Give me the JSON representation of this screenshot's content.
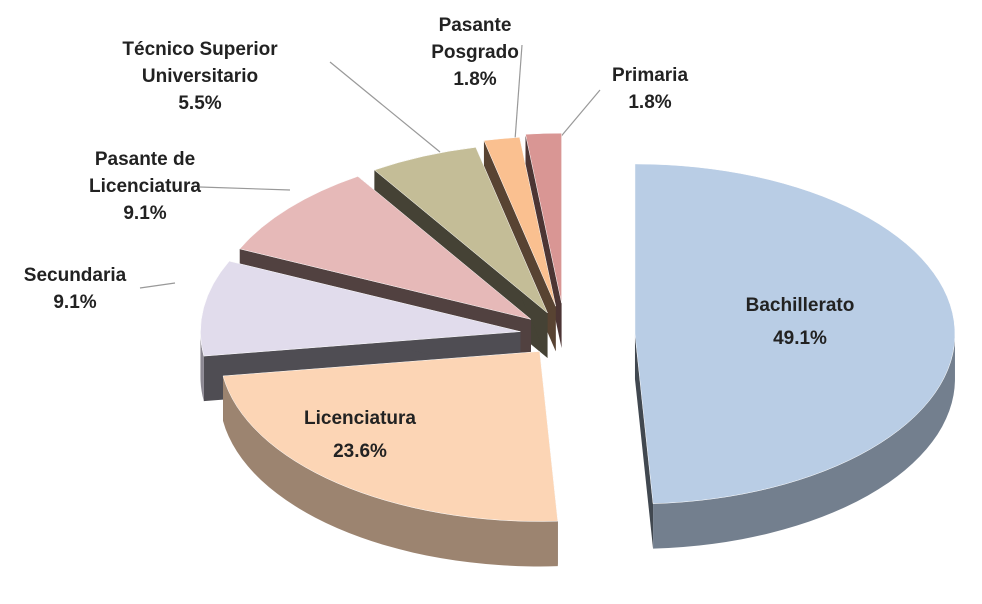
{
  "chart_data": {
    "type": "pie",
    "categories": [
      "Bachillerato",
      "Licenciatura",
      "Secundaria",
      "Pasante de Licenciatura",
      "Técnico Superior Universitario",
      "Pasante Posgrado",
      "Primaria"
    ],
    "values": [
      49.1,
      23.6,
      9.1,
      9.1,
      5.5,
      1.8,
      1.8
    ],
    "value_labels": [
      "49.1%",
      "23.6%",
      "9.1%",
      "9.1%",
      "5.5%",
      "1.8%",
      "1.8%"
    ],
    "colors": [
      "#b9cde5",
      "#fcd5b5",
      "#e1dcec",
      "#e6b9b8",
      "#c4bd97",
      "#fac090",
      "#d99694"
    ]
  }
}
